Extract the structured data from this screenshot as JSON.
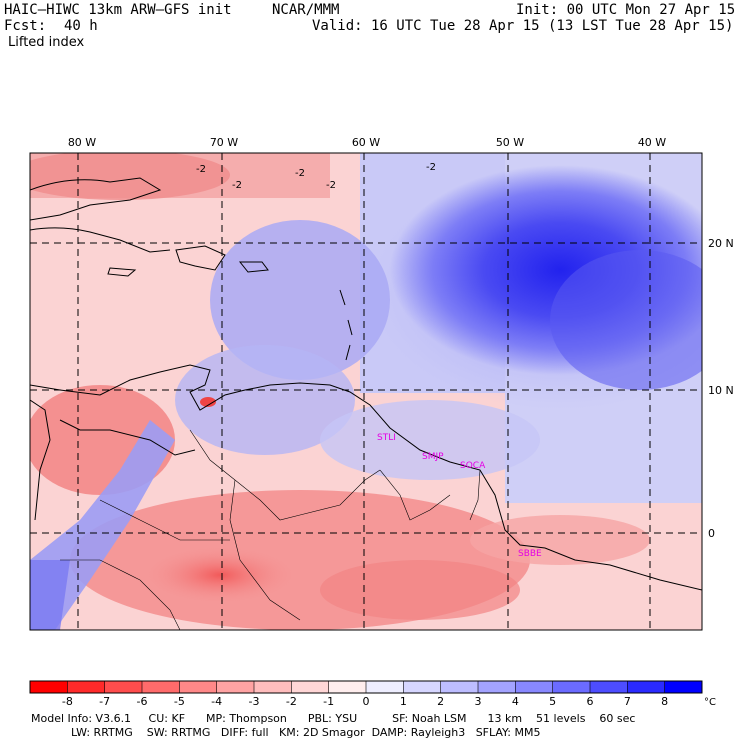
{
  "header": {
    "model_line": "HAIC–HIWC 13km ARW–GFS init",
    "org": "NCAR/MMM",
    "init": "Init: 00 UTC Mon 27 Apr 15",
    "fcst_label": "Fcst:",
    "fcst_value": "40 h",
    "valid": "Valid: 16 UTC Tue 28 Apr 15 (13 LST Tue 28 Apr 15)",
    "field": "Lifted index"
  },
  "map": {
    "lon_labels": [
      "80 W",
      "70 W",
      "60 W",
      "50 W",
      "40 W"
    ],
    "lat_labels": [
      "20 N",
      "10 N",
      "0"
    ],
    "contour_labels": [
      "-2",
      "-2",
      "-2",
      "-2",
      "-2"
    ],
    "stations": [
      "STLI",
      "SMJP",
      "SOCA",
      "SBBE"
    ],
    "colors": {
      "station": "#e400e4",
      "contour": "#000000",
      "grid": "#000000"
    }
  },
  "colorbar": {
    "ticks": [
      "-8",
      "-7",
      "-6",
      "-5",
      "-4",
      "-3",
      "-2",
      "-1",
      "0",
      "1",
      "2",
      "3",
      "4",
      "5",
      "6",
      "7",
      "8"
    ],
    "unit": "°C",
    "colors": [
      "#ff0000",
      "#ff2a2a",
      "#ff4d4d",
      "#ff6b6b",
      "#ff8888",
      "#ffa3a3",
      "#ffbdbd",
      "#ffd6d6",
      "#ffeeee",
      "#eeeeff",
      "#d6d6ff",
      "#bdbdff",
      "#a3a3ff",
      "#8888ff",
      "#6b6bff",
      "#4d4dff",
      "#2a2aff",
      "#0000ff"
    ]
  },
  "footer": {
    "line1": "Model Info: V3.6.1     CU: KF      MP: Thompson      PBL: YSU          SF: Noah LSM      13 km    51 levels    60 sec",
    "line2": "LW: RRTMG    SW: RRTMG   DIFF: full   KM: 2D Smagor  DAMP: Rayleigh3   SFLAY: MM5"
  }
}
